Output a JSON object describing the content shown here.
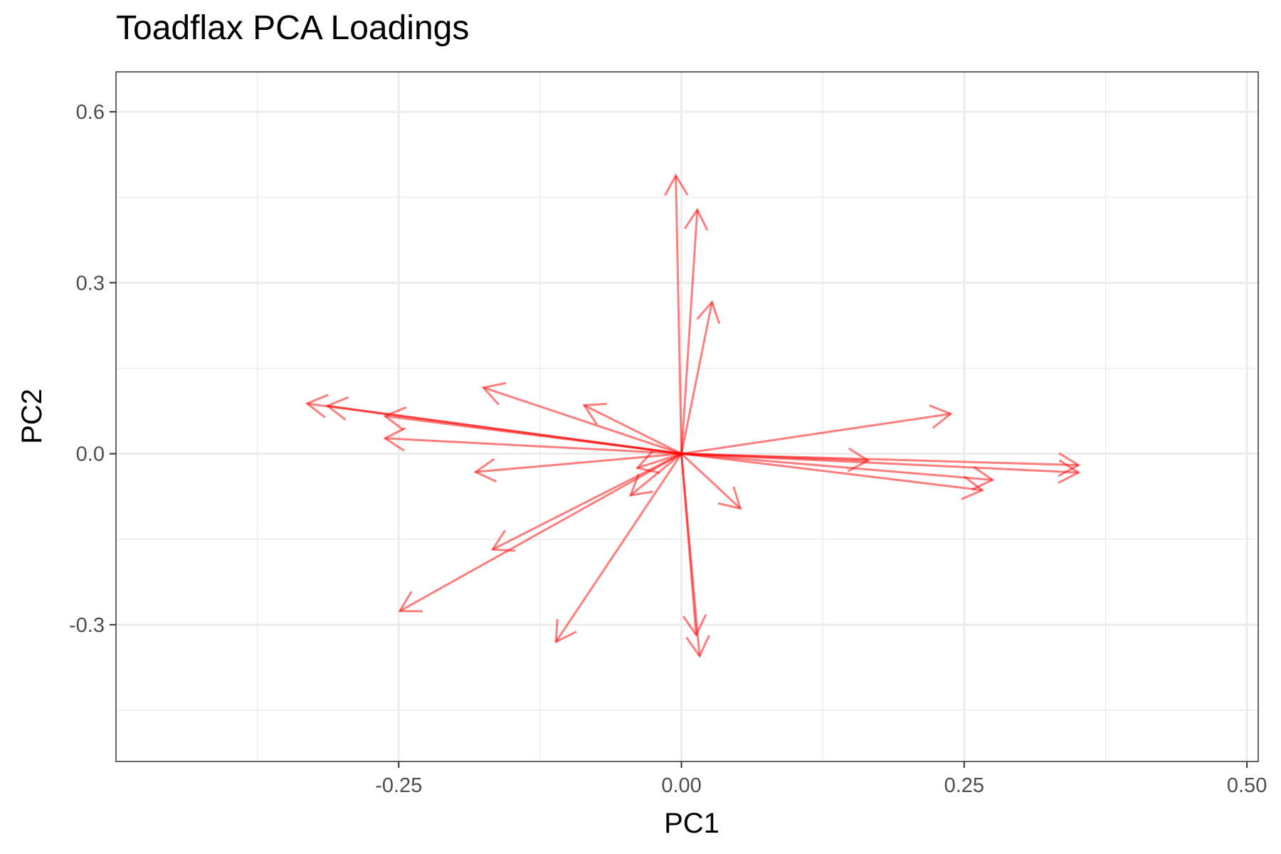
{
  "chart_data": {
    "type": "line",
    "title": "Toadflax PCA Loadings",
    "xlabel": "PC1",
    "ylabel": "PC2",
    "xlim": [
      -0.5,
      0.51
    ],
    "ylim": [
      -0.54,
      0.67
    ],
    "x_ticks": [
      -0.25,
      0.0,
      0.25,
      0.5
    ],
    "x_tick_labels": [
      "-0.25",
      "0.00",
      "0.25",
      "0.50"
    ],
    "y_ticks": [
      -0.3,
      0.0,
      0.3,
      0.6
    ],
    "y_tick_labels": [
      "-0.3",
      "0.0",
      "0.3",
      "0.6"
    ],
    "grid": true,
    "arrow_color": "#ff0000",
    "arrows": [
      {
        "x": -0.331,
        "y": 0.088
      },
      {
        "x": -0.313,
        "y": 0.084
      },
      {
        "x": -0.262,
        "y": 0.066
      },
      {
        "x": -0.262,
        "y": 0.027
      },
      {
        "x": -0.182,
        "y": -0.032
      },
      {
        "x": -0.175,
        "y": 0.116
      },
      {
        "x": -0.086,
        "y": 0.085
      },
      {
        "x": -0.039,
        "y": -0.025
      },
      {
        "x": -0.045,
        "y": -0.073
      },
      {
        "x": -0.167,
        "y": -0.168
      },
      {
        "x": -0.249,
        "y": -0.276
      },
      {
        "x": -0.111,
        "y": -0.33
      },
      {
        "x": -0.005,
        "y": 0.488
      },
      {
        "x": 0.014,
        "y": 0.428
      },
      {
        "x": 0.027,
        "y": 0.266
      },
      {
        "x": 0.052,
        "y": -0.096
      },
      {
        "x": 0.013,
        "y": -0.318
      },
      {
        "x": 0.016,
        "y": -0.355
      },
      {
        "x": 0.238,
        "y": 0.07
      },
      {
        "x": 0.165,
        "y": -0.012
      },
      {
        "x": 0.351,
        "y": -0.02
      },
      {
        "x": 0.351,
        "y": -0.033
      },
      {
        "x": 0.275,
        "y": -0.046
      },
      {
        "x": 0.266,
        "y": -0.064
      }
    ]
  }
}
